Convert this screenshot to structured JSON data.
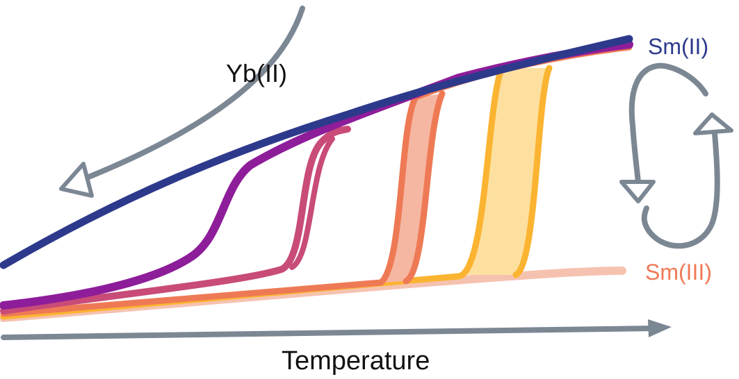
{
  "labels": {
    "yb": "Yb(II)",
    "sm2": "Sm(II)",
    "sm3": "Sm(III)",
    "temperature": "Temperature"
  },
  "colors": {
    "navy": "#2d3a8c",
    "purple": "#8e1d9a",
    "magenta": "#c84b78",
    "coral": "#ee7a55",
    "coralFill": "#f5b7a2",
    "amber": "#fbb431",
    "amberFill": "#fde0a0",
    "peach": "#f6c2b0",
    "arrow": "#7c8794",
    "sm2Text": "#2d3a8c",
    "sm3Text": "#ee7a55",
    "text": "#111111"
  },
  "icons": {
    "temperature_arrow": "arrow-right-icon",
    "yb_arrow": "curved-arrow-down-left-icon",
    "cycle_arrows": "cycle-arrows-icon"
  }
}
